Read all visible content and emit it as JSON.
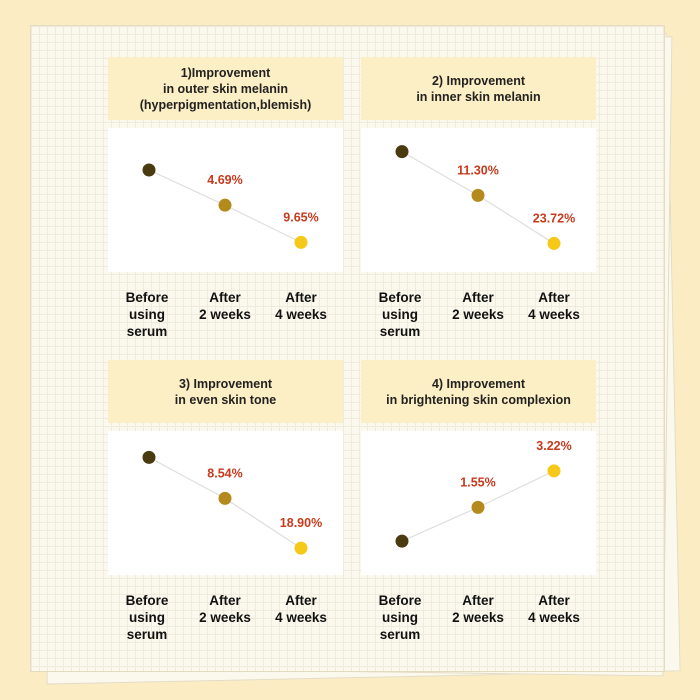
{
  "chart_data": [
    {
      "type": "line",
      "title": "1)Improvement\nin outer skin melanin\n(hyperpigmentation,blemish)",
      "categories": [
        "Before\nusing\nserum",
        "After\n2 weeks",
        "After\n4 weeks"
      ],
      "values": [
        0,
        4.69,
        9.65
      ],
      "value_labels": [
        null,
        "4.69%",
        "9.65%"
      ],
      "point_colors": [
        "#4a3a10",
        "#b58a1c",
        "#f6c817"
      ],
      "label_color": "#c73a1d",
      "ylim": [
        12,
        -4
      ]
    },
    {
      "type": "line",
      "title": "2) Improvement\nin inner skin melanin",
      "categories": [
        "Before\nusing\nserum",
        "After\n2 weeks",
        "After\n4 weeks"
      ],
      "values": [
        0,
        11.3,
        23.72
      ],
      "value_labels": [
        null,
        "11.30%",
        "23.72%"
      ],
      "point_colors": [
        "#4a3a10",
        "#b58a1c",
        "#f6c817"
      ],
      "label_color": "#c73a1d",
      "ylim": [
        28,
        -3
      ]
    },
    {
      "type": "line",
      "title": "3) Improvement\nin even skin tone",
      "categories": [
        "Before\nusing\nserum",
        "After\n2 weeks",
        "After\n4 weeks"
      ],
      "values": [
        0,
        8.54,
        18.9
      ],
      "value_labels": [
        null,
        "8.54%",
        "18.90%"
      ],
      "point_colors": [
        "#4a3a10",
        "#b58a1c",
        "#f6c817"
      ],
      "label_color": "#c73a1d",
      "ylim": [
        22,
        -3
      ]
    },
    {
      "type": "line",
      "title": "4) Improvement\nin brightening skin complexion",
      "categories": [
        "Before\nusing\nserum",
        "After\n2 weeks",
        "After\n4 weeks"
      ],
      "values": [
        0,
        1.55,
        3.22
      ],
      "value_labels": [
        null,
        "1.55%",
        "3.22%"
      ],
      "point_colors": [
        "#4a3a10",
        "#b58a1c",
        "#f6c817"
      ],
      "label_color": "#c73a1d",
      "ylim": [
        -1,
        4.5
      ]
    }
  ]
}
